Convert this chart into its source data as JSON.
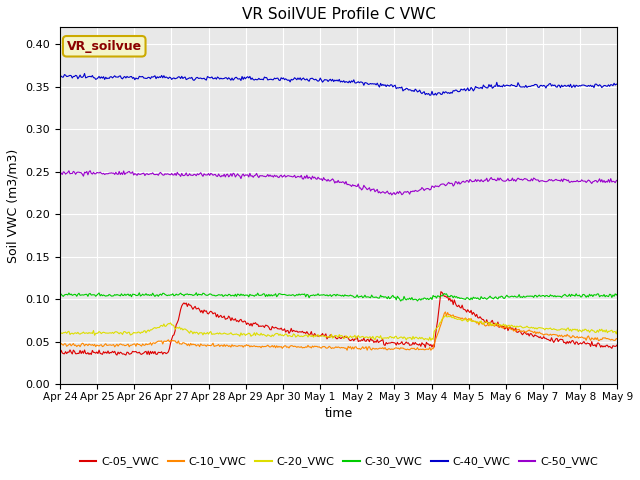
{
  "title": "VR SoilVUE Profile C VWC",
  "ylabel": "Soil VWC (m3/m3)",
  "xlabel": "time",
  "ylim": [
    0.0,
    0.42
  ],
  "yticks": [
    0.0,
    0.05,
    0.1,
    0.15,
    0.2,
    0.25,
    0.3,
    0.35,
    0.4
  ],
  "background_color": "#e8e8e8",
  "legend_label": "VR_soilvue",
  "legend_box_color": "#f5f5c8",
  "legend_box_edge": "#ccaa00",
  "series_colors": {
    "C-05_VWC": "#dd0000",
    "C-10_VWC": "#ff8800",
    "C-20_VWC": "#dddd00",
    "C-30_VWC": "#00cc00",
    "C-40_VWC": "#0000cc",
    "C-50_VWC": "#9900cc"
  },
  "n_points": 500,
  "total_days": 15,
  "spike_day": 10.05,
  "spike_day_first": 2.9
}
